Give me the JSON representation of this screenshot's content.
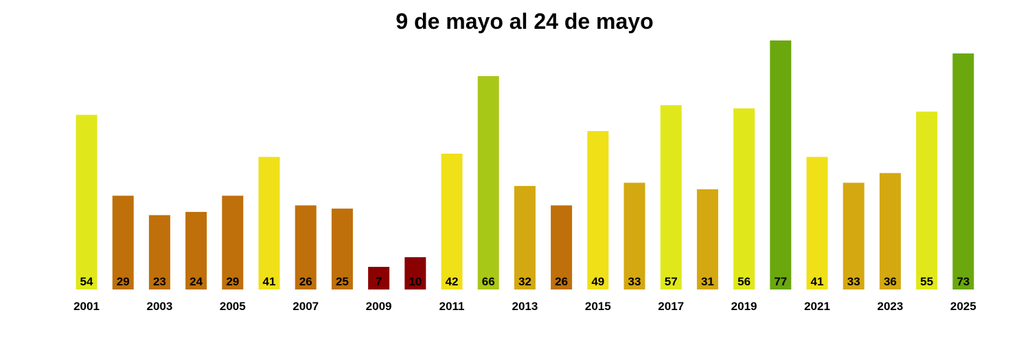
{
  "chart_data": {
    "type": "bar",
    "title": "9 de mayo al 24 de mayo",
    "xlabel": "",
    "ylabel": "",
    "categories": [
      "2001",
      "2002",
      "2003",
      "2004",
      "2005",
      "2006",
      "2007",
      "2008",
      "2009",
      "2010",
      "2011",
      "2012",
      "2013",
      "2014",
      "2015",
      "2016",
      "2017",
      "2018",
      "2019",
      "2020",
      "2021",
      "2022",
      "2023",
      "2024",
      "2025"
    ],
    "values": [
      54,
      29,
      23,
      24,
      29,
      41,
      26,
      25,
      7,
      10,
      42,
      66,
      32,
      26,
      49,
      33,
      57,
      31,
      56,
      77,
      41,
      33,
      36,
      55,
      73
    ],
    "x_tick_labels": [
      "2001",
      "2003",
      "2005",
      "2007",
      "2009",
      "2011",
      "2013",
      "2015",
      "2017",
      "2019",
      "2021",
      "2023",
      "2025"
    ],
    "ylim": [
      0,
      77
    ],
    "grid": false,
    "legend": "none",
    "bar_colors": [
      "#e0e81c",
      "#bf700a",
      "#bf700a",
      "#bf700a",
      "#bf700a",
      "#f0e018",
      "#bf700a",
      "#bf700a",
      "#8b0000",
      "#8b0000",
      "#f0e018",
      "#a8c818",
      "#d4a810",
      "#bf700a",
      "#f0e018",
      "#d4a810",
      "#e0e81c",
      "#d4a810",
      "#e0e81c",
      "#6aa80e",
      "#f0e018",
      "#d4a810",
      "#d4a810",
      "#e0e81c",
      "#6aa80e"
    ]
  }
}
